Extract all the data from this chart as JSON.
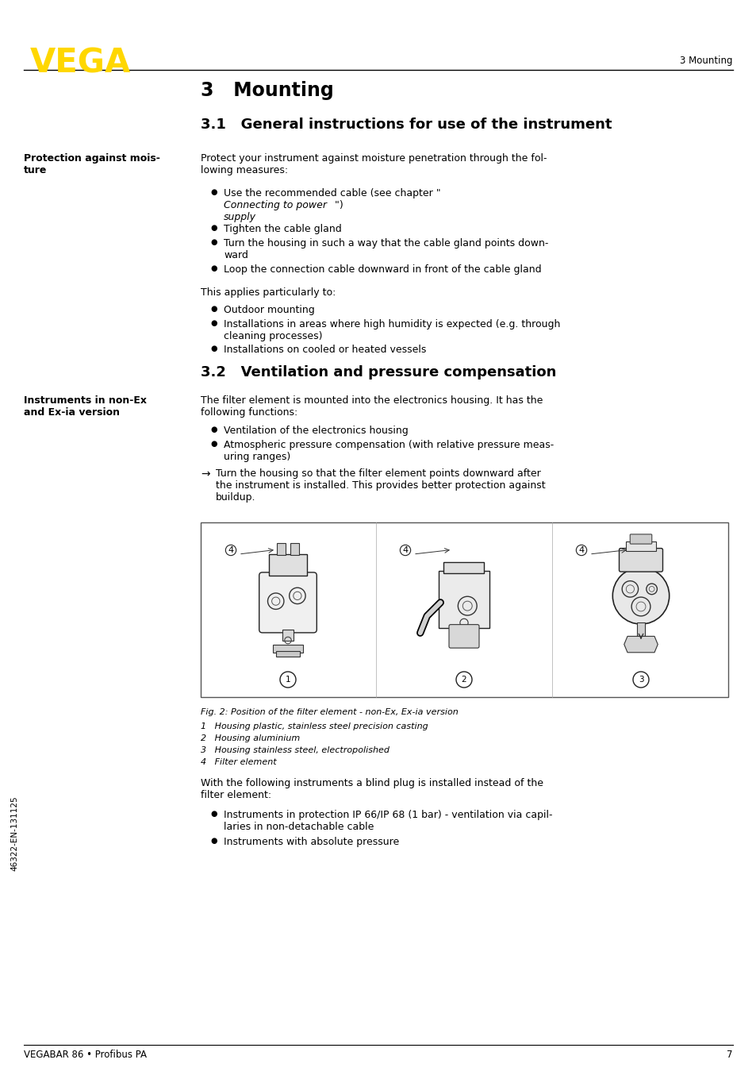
{
  "page_bg": "#ffffff",
  "vega_logo_color": "#FFD700",
  "header_right_text": "3 Mounting",
  "footer_left_text": "VEGABAR 86 • Profibus PA",
  "footer_right_text": "7",
  "sidebar_text": "46322-EN-131125",
  "main_title": "3   Mounting",
  "section1_title": "3.1   General instructions for use of the instrument",
  "section2_title": "3.2   Ventilation and pressure compensation"
}
